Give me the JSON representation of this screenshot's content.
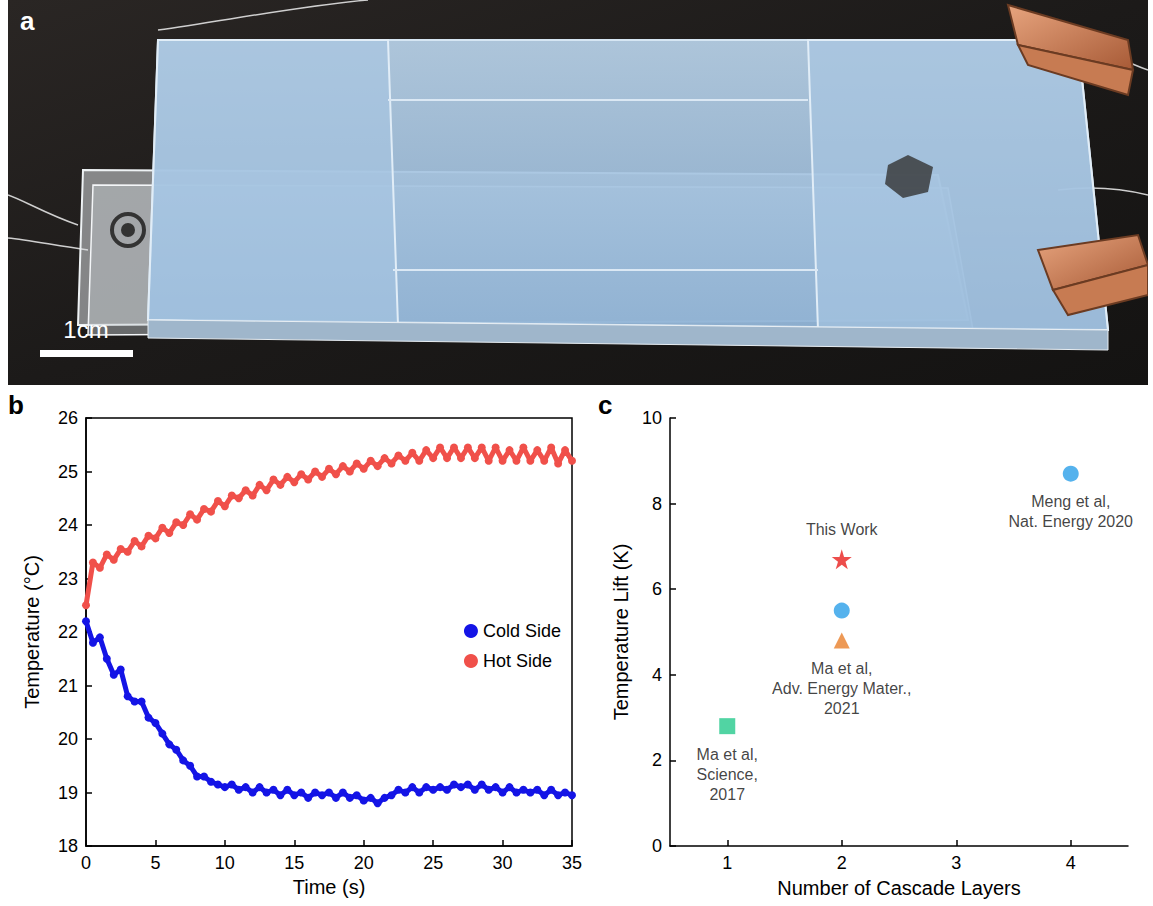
{
  "photo": {
    "panel": "a",
    "scale_bar": "1cm"
  },
  "chart_data": [
    {
      "panel": "b",
      "type": "line",
      "marker": "circle",
      "x_label": "Time (s)",
      "y_label": "Temperature (°C)",
      "x": [
        0,
        0.5,
        1,
        1.5,
        2,
        2.5,
        3,
        3.5,
        4,
        4.5,
        5,
        5.5,
        6,
        6.5,
        7,
        7.5,
        8,
        8.5,
        9,
        9.5,
        10,
        10.5,
        11,
        11.5,
        12,
        12.5,
        13,
        13.5,
        14,
        14.5,
        15,
        15.5,
        16,
        16.5,
        17,
        17.5,
        18,
        18.5,
        19,
        19.5,
        20,
        20.5,
        21,
        21.5,
        22,
        22.5,
        23,
        23.5,
        24,
        24.5,
        25,
        25.5,
        26,
        26.5,
        27,
        27.5,
        28,
        28.5,
        29,
        29.5,
        30,
        30.5,
        31,
        31.5,
        32,
        32.5,
        33,
        33.5,
        34,
        34.5,
        35
      ],
      "series": [
        {
          "name": "Cold Side",
          "color": "#1414e6",
          "values": [
            22.2,
            21.8,
            21.9,
            21.5,
            21.2,
            21.3,
            20.8,
            20.7,
            20.7,
            20.4,
            20.3,
            20.1,
            19.9,
            19.8,
            19.6,
            19.5,
            19.3,
            19.3,
            19.2,
            19.15,
            19.1,
            19.15,
            19.05,
            19.1,
            19.0,
            19.1,
            19.0,
            19.05,
            18.95,
            19.05,
            18.95,
            19.0,
            18.9,
            19.0,
            18.95,
            19.0,
            18.9,
            19.0,
            18.9,
            18.95,
            18.85,
            18.9,
            18.8,
            18.9,
            18.95,
            19.05,
            19.0,
            19.1,
            19.0,
            19.1,
            19.05,
            19.1,
            19.05,
            19.15,
            19.1,
            19.15,
            19.05,
            19.15,
            19.05,
            19.1,
            19.0,
            19.1,
            19.0,
            19.05,
            19.0,
            19.05,
            18.95,
            19.05,
            18.95,
            19.0,
            18.95
          ]
        },
        {
          "name": "Hot Side",
          "color": "#f0504a",
          "values": [
            22.5,
            23.3,
            23.2,
            23.45,
            23.35,
            23.55,
            23.5,
            23.7,
            23.6,
            23.8,
            23.75,
            23.95,
            23.85,
            24.05,
            24.0,
            24.2,
            24.1,
            24.3,
            24.25,
            24.45,
            24.35,
            24.55,
            24.5,
            24.65,
            24.55,
            24.75,
            24.65,
            24.85,
            24.75,
            24.9,
            24.8,
            24.95,
            24.85,
            25.0,
            24.9,
            25.05,
            24.95,
            25.1,
            25.0,
            25.15,
            25.05,
            25.2,
            25.1,
            25.25,
            25.15,
            25.3,
            25.2,
            25.35,
            25.2,
            25.4,
            25.25,
            25.45,
            25.25,
            25.45,
            25.25,
            25.45,
            25.25,
            25.45,
            25.2,
            25.45,
            25.2,
            25.4,
            25.2,
            25.45,
            25.2,
            25.4,
            25.2,
            25.45,
            25.15,
            25.4,
            25.2
          ]
        }
      ],
      "xlim": [
        0,
        35
      ],
      "xticks": [
        0,
        5,
        10,
        15,
        20,
        25,
        30,
        35
      ],
      "ylim": [
        18,
        26
      ],
      "yticks": [
        18,
        19,
        20,
        21,
        22,
        23,
        24,
        25,
        26
      ],
      "legend": "right",
      "grid": false
    },
    {
      "panel": "c",
      "type": "scatter",
      "x_label": "Number of Cascade Layers",
      "y_label": "Temperature Lift (K)",
      "points": [
        {
          "x": 1,
          "y": 2.8,
          "color": "#26c98c",
          "marker": "square",
          "label": "Ma et al, Science, 2017"
        },
        {
          "x": 2,
          "y": 6.7,
          "color": "#e8201e",
          "marker": "star",
          "label": "This Work"
        },
        {
          "x": 2,
          "y": 5.5,
          "color": "#2b9fe8",
          "marker": "circle"
        },
        {
          "x": 2,
          "y": 4.8,
          "color": "#e8802a",
          "marker": "triangle",
          "label": "Ma et al, Adv. Energy Mater., 2021"
        },
        {
          "x": 4,
          "y": 8.7,
          "color": "#2b9fe8",
          "marker": "circle",
          "label": "Meng et al, Nat. Energy 2020"
        }
      ],
      "xlim": [
        0.5,
        4.5
      ],
      "xticks": [
        1,
        2,
        3,
        4
      ],
      "ylim": [
        0,
        10
      ],
      "yticks": [
        0,
        2,
        4,
        6,
        8,
        10
      ],
      "grid": false
    }
  ]
}
